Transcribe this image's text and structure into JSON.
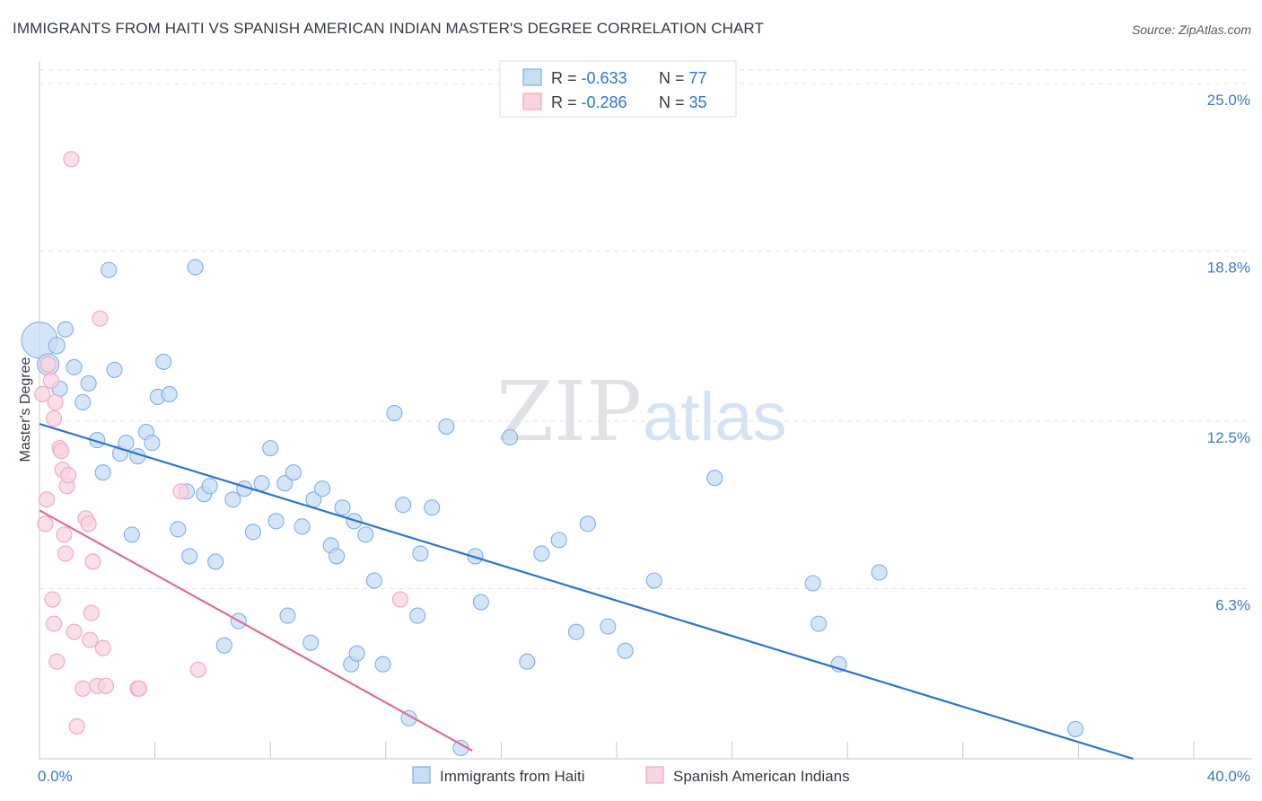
{
  "chart_data": {
    "type": "scatter",
    "title": "IMMIGRANTS FROM HAITI VS SPANISH AMERICAN INDIAN MASTER'S DEGREE CORRELATION CHART",
    "source": "Source: ZipAtlas.com",
    "xlabel": "",
    "ylabel": "Master's Degree",
    "xlim": [
      0,
      40
    ],
    "ylim": [
      0,
      26.1
    ],
    "x_tick_labels": [
      "0.0%",
      "40.0%"
    ],
    "y_ticks": [
      6.3,
      12.5,
      18.8,
      25.0
    ],
    "y_tick_labels": [
      "6.3%",
      "12.5%",
      "18.8%",
      "25.0%"
    ],
    "watermark": {
      "part1": "ZIP",
      "part2": "atlas"
    },
    "legend": {
      "entries": [
        {
          "r_label": "R = ",
          "r_value": "-0.633",
          "n_label": "N = ",
          "n_value": "77",
          "color": "#7eaee6"
        },
        {
          "r_label": "R = ",
          "r_value": "-0.286",
          "n_label": "N = ",
          "n_value": "35",
          "color": "#f2a6bf"
        }
      ]
    },
    "series": [
      {
        "name": "Immigrants from Haiti",
        "color": "#7eaee6",
        "fill": "#c7dcf5",
        "line_color": "#2f73d0",
        "trend": {
          "x": [
            0,
            37.9
          ],
          "y": [
            12.4,
            0
          ]
        },
        "points": [
          [
            0.0,
            15.5,
            36
          ],
          [
            0.3,
            14.6,
            20
          ],
          [
            0.6,
            15.3,
            14
          ],
          [
            0.9,
            15.9,
            13
          ],
          [
            1.2,
            14.5,
            13
          ],
          [
            0.7,
            13.7,
            13
          ],
          [
            1.5,
            13.2,
            13
          ],
          [
            1.7,
            13.9,
            13
          ],
          [
            2.0,
            11.8,
            13
          ],
          [
            2.2,
            10.6,
            13
          ],
          [
            2.4,
            18.1,
            13
          ],
          [
            2.6,
            14.4,
            13
          ],
          [
            2.8,
            11.3,
            13
          ],
          [
            3.0,
            11.7,
            13
          ],
          [
            3.2,
            8.3,
            13
          ],
          [
            3.4,
            11.2,
            13
          ],
          [
            3.7,
            12.1,
            13
          ],
          [
            3.9,
            11.7,
            13
          ],
          [
            4.1,
            13.4,
            13
          ],
          [
            4.3,
            14.7,
            13
          ],
          [
            4.5,
            13.5,
            13
          ],
          [
            4.8,
            8.5,
            13
          ],
          [
            5.1,
            9.9,
            13
          ],
          [
            5.2,
            7.5,
            13
          ],
          [
            5.4,
            18.2,
            13
          ],
          [
            5.7,
            9.8,
            13
          ],
          [
            5.9,
            10.1,
            13
          ],
          [
            6.1,
            7.3,
            13
          ],
          [
            6.4,
            4.2,
            13
          ],
          [
            6.7,
            9.6,
            13
          ],
          [
            6.9,
            5.1,
            13
          ],
          [
            7.1,
            10.0,
            13
          ],
          [
            7.4,
            8.4,
            13
          ],
          [
            7.7,
            10.2,
            13
          ],
          [
            8.0,
            11.5,
            13
          ],
          [
            8.2,
            8.8,
            13
          ],
          [
            8.5,
            10.2,
            13
          ],
          [
            8.8,
            10.6,
            13
          ],
          [
            8.6,
            5.3,
            13
          ],
          [
            9.1,
            8.6,
            13
          ],
          [
            9.5,
            9.6,
            13
          ],
          [
            9.8,
            10.0,
            13
          ],
          [
            9.4,
            4.3,
            13
          ],
          [
            10.1,
            7.9,
            13
          ],
          [
            10.3,
            7.5,
            13
          ],
          [
            10.5,
            9.3,
            13
          ],
          [
            10.8,
            3.5,
            13
          ],
          [
            10.9,
            8.8,
            13
          ],
          [
            11.3,
            8.3,
            13
          ],
          [
            11.0,
            3.9,
            13
          ],
          [
            11.6,
            6.6,
            13
          ],
          [
            11.9,
            3.5,
            13
          ],
          [
            12.3,
            12.8,
            13
          ],
          [
            12.6,
            9.4,
            13
          ],
          [
            12.8,
            1.5,
            13
          ],
          [
            13.1,
            5.3,
            13
          ],
          [
            13.2,
            7.6,
            13
          ],
          [
            13.6,
            9.3,
            13
          ],
          [
            14.1,
            12.3,
            13
          ],
          [
            14.6,
            0.4,
            13
          ],
          [
            15.1,
            7.5,
            13
          ],
          [
            15.3,
            5.8,
            13
          ],
          [
            16.3,
            11.9,
            13
          ],
          [
            16.9,
            3.6,
            13
          ],
          [
            17.4,
            7.6,
            13
          ],
          [
            18.0,
            8.1,
            13
          ],
          [
            18.6,
            4.7,
            13
          ],
          [
            19.0,
            8.7,
            13
          ],
          [
            19.7,
            4.9,
            13
          ],
          [
            20.3,
            4.0,
            13
          ],
          [
            21.3,
            6.6,
            13
          ],
          [
            23.4,
            10.4,
            13
          ],
          [
            26.8,
            6.5,
            13
          ],
          [
            27.0,
            5.0,
            13
          ],
          [
            27.7,
            3.5,
            13
          ],
          [
            29.1,
            6.9,
            13
          ],
          [
            35.9,
            1.1,
            13
          ]
        ]
      },
      {
        "name": "Spanish American Indians",
        "color": "#f2a6bf",
        "fill": "#f8d3e0",
        "line_color": "#e06b94",
        "trend": {
          "x": [
            0,
            15.0
          ],
          "y": [
            9.2,
            0.3
          ]
        },
        "points": [
          [
            0.1,
            13.5,
            13
          ],
          [
            0.2,
            8.7,
            13
          ],
          [
            0.25,
            9.6,
            13
          ],
          [
            0.3,
            14.6,
            13
          ],
          [
            0.4,
            14.0,
            13
          ],
          [
            0.5,
            12.6,
            13
          ],
          [
            0.45,
            5.9,
            13
          ],
          [
            0.5,
            5.0,
            13
          ],
          [
            0.55,
            13.2,
            13
          ],
          [
            0.6,
            3.6,
            13
          ],
          [
            0.7,
            11.5,
            13
          ],
          [
            0.75,
            11.4,
            13
          ],
          [
            0.8,
            10.7,
            13
          ],
          [
            0.85,
            8.3,
            13
          ],
          [
            0.9,
            7.6,
            13
          ],
          [
            0.95,
            10.1,
            13
          ],
          [
            1.0,
            10.5,
            13
          ],
          [
            1.1,
            22.2,
            13
          ],
          [
            1.2,
            4.7,
            13
          ],
          [
            1.3,
            1.2,
            13
          ],
          [
            1.5,
            2.6,
            13
          ],
          [
            1.6,
            8.9,
            13
          ],
          [
            1.7,
            8.7,
            13
          ],
          [
            1.75,
            4.4,
            13
          ],
          [
            1.8,
            5.4,
            13
          ],
          [
            1.85,
            7.3,
            13
          ],
          [
            2.0,
            2.7,
            13
          ],
          [
            2.1,
            16.3,
            13
          ],
          [
            2.2,
            4.1,
            13
          ],
          [
            2.3,
            2.7,
            13
          ],
          [
            3.4,
            2.6,
            13
          ],
          [
            3.45,
            2.6,
            13
          ],
          [
            4.9,
            9.9,
            13
          ],
          [
            5.5,
            3.3,
            13
          ],
          [
            12.5,
            5.9,
            13
          ]
        ]
      }
    ],
    "legend_bottom": [
      "Immigrants from Haiti",
      "Spanish American Indians"
    ]
  }
}
